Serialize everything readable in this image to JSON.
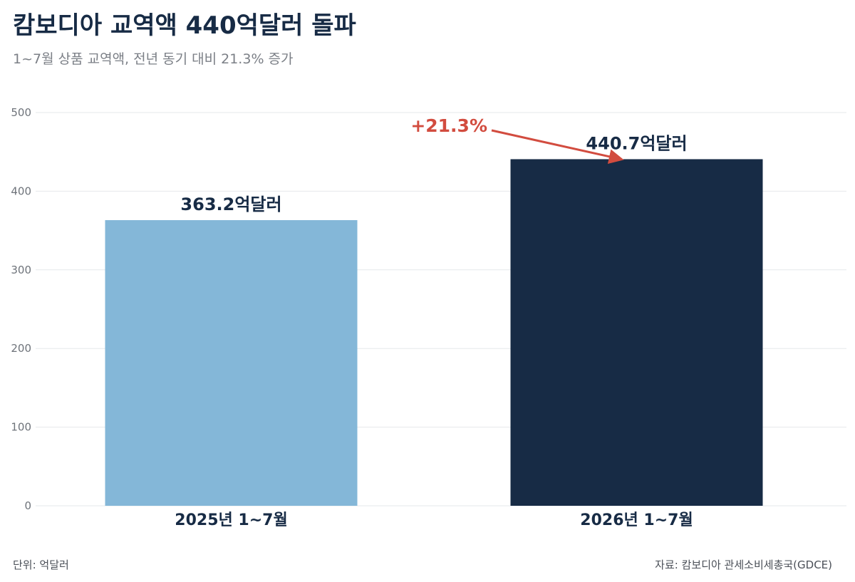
{
  "header": {
    "title": "캄보디아 교역액 440억달러 돌파",
    "subtitle": "1~7월 상품 교역액, 전년 동기 대비 21.3% 증가"
  },
  "footer": {
    "unit": "단위: 억달러",
    "source": "자료: 캄보디아 관세소비세총국(GDCE)"
  },
  "chart_data": {
    "type": "bar",
    "categories": [
      "2025년 1~7월",
      "2026년 1~7월"
    ],
    "values": [
      363.2,
      440.7
    ],
    "data_labels": [
      "363.2억달러",
      "440.7억달러"
    ],
    "colors": [
      "#84b7d8",
      "#172b45"
    ],
    "ylim": [
      0,
      500
    ],
    "yticks": [
      0,
      100,
      200,
      300,
      400,
      500
    ],
    "grid": true,
    "annotation": {
      "text": "+21.3%",
      "color": "#d24c3f"
    }
  }
}
